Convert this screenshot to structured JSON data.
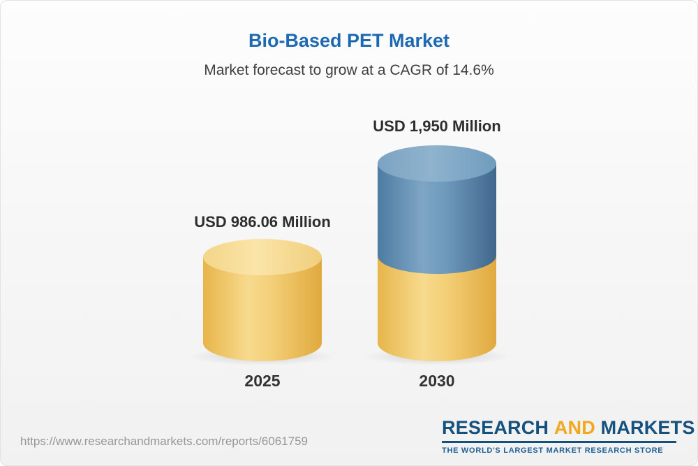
{
  "header": {
    "title": "Bio-Based PET Market",
    "subtitle": "Market forecast to grow at a CAGR of 14.6%"
  },
  "chart_data": {
    "type": "bar",
    "title": "Bio-Based PET Market",
    "subtitle": "Market forecast to grow at a CAGR of 14.6%",
    "cagr_percent": 14.6,
    "unit": "USD Million",
    "categories": [
      "2025",
      "2030"
    ],
    "values": [
      986.06,
      1950
    ],
    "value_labels": [
      "USD 986.06 Million",
      "USD 1,950 Million"
    ],
    "legend_position": "none",
    "grid": false,
    "colors": {
      "bar_2025": "#F0C75E",
      "bar_2030_base_segment": "#F0C75E",
      "bar_2030_growth_segment": "#5A88AD",
      "title_accent": "#1D6AB2"
    }
  },
  "footer": {
    "url": "https://www.researchandmarkets.com/reports/6061759",
    "logo": {
      "word_research": "RESEARCH",
      "word_and": "AND",
      "word_markets": "MARKETS",
      "tagline": "THE WORLD'S LARGEST MARKET RESEARCH STORE"
    }
  }
}
